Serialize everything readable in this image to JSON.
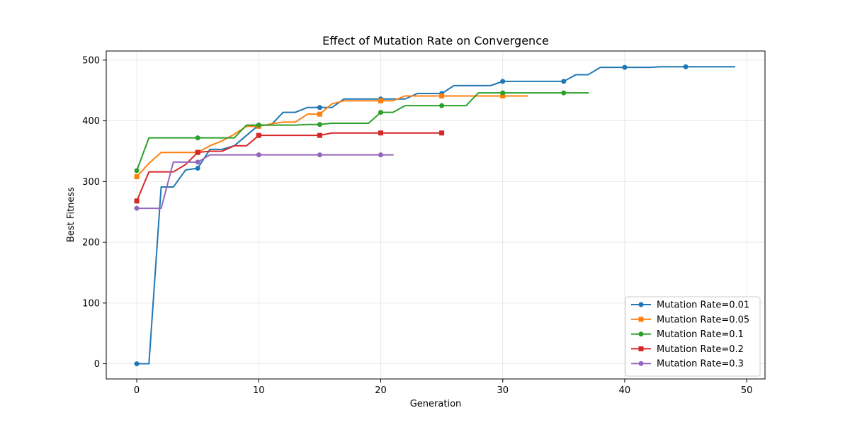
{
  "chart_data": {
    "type": "line",
    "title": "Effect of Mutation Rate on Convergence",
    "xlabel": "Generation",
    "ylabel": "Best Fitness",
    "xlim": [
      -2.5,
      51.5
    ],
    "ylim": [
      -25,
      515
    ],
    "xticks": [
      0,
      10,
      20,
      30,
      40,
      50
    ],
    "yticks": [
      0,
      100,
      200,
      300,
      400,
      500
    ],
    "grid": true,
    "legend_position": "lower-right",
    "series": [
      {
        "name": "Mutation Rate=0.01",
        "color": "#1f77b4",
        "marker": "circle",
        "marker_every": 5,
        "x": [
          0,
          1,
          2,
          3,
          4,
          5,
          6,
          7,
          8,
          9,
          10,
          11,
          12,
          13,
          14,
          15,
          16,
          17,
          18,
          19,
          20,
          21,
          22,
          23,
          24,
          25,
          26,
          27,
          28,
          29,
          30,
          31,
          32,
          33,
          34,
          35,
          36,
          37,
          38,
          39,
          40,
          41,
          42,
          43,
          44,
          45,
          46,
          47,
          48,
          49
        ],
        "y": [
          0,
          0,
          291,
          291,
          319,
          322,
          353,
          353,
          359,
          376,
          393,
          393,
          414,
          414,
          422,
          422,
          422,
          436,
          436,
          436,
          436,
          436,
          436,
          445,
          445,
          445,
          458,
          458,
          458,
          458,
          465,
          465,
          465,
          465,
          465,
          465,
          476,
          476,
          488,
          488,
          488,
          488,
          488,
          489,
          489,
          489,
          489,
          489,
          489,
          489
        ]
      },
      {
        "name": "Mutation Rate=0.05",
        "color": "#ff7f0e",
        "marker": "square",
        "marker_every": 5,
        "x": [
          0,
          1,
          2,
          3,
          4,
          5,
          6,
          7,
          8,
          9,
          10,
          11,
          12,
          13,
          14,
          15,
          16,
          17,
          18,
          19,
          20,
          21,
          22,
          23,
          24,
          25,
          26,
          27,
          28,
          29,
          30,
          31,
          32
        ],
        "y": [
          308,
          330,
          348,
          348,
          348,
          348,
          359,
          367,
          378,
          391,
          391,
          395,
          398,
          398,
          411,
          411,
          428,
          433,
          433,
          433,
          433,
          433,
          441,
          441,
          441,
          441,
          441,
          441,
          441,
          441,
          441,
          441,
          441
        ]
      },
      {
        "name": "Mutation Rate=0.1",
        "color": "#2ca02c",
        "marker": "circle",
        "marker_every": 5,
        "x": [
          0,
          1,
          2,
          3,
          4,
          5,
          6,
          7,
          8,
          9,
          10,
          11,
          12,
          13,
          14,
          15,
          16,
          17,
          18,
          19,
          20,
          21,
          22,
          23,
          24,
          25,
          26,
          27,
          28,
          29,
          30,
          31,
          32,
          33,
          34,
          35,
          36,
          37
        ],
        "y": [
          318,
          372,
          372,
          372,
          372,
          372,
          372,
          372,
          372,
          393,
          393,
          393,
          393,
          393,
          394,
          394,
          396,
          396,
          396,
          396,
          414,
          414,
          425,
          425,
          425,
          425,
          425,
          425,
          446,
          446,
          446,
          446,
          446,
          446,
          446,
          446,
          446,
          446
        ]
      },
      {
        "name": "Mutation Rate=0.2",
        "color": "#d62728",
        "marker": "square",
        "marker_every": 5,
        "x": [
          0,
          1,
          2,
          3,
          4,
          5,
          6,
          7,
          8,
          9,
          10,
          11,
          12,
          13,
          14,
          15,
          16,
          17,
          18,
          19,
          20,
          21,
          22,
          23,
          24,
          25
        ],
        "y": [
          268,
          316,
          316,
          316,
          328,
          348,
          350,
          350,
          359,
          359,
          376,
          376,
          376,
          376,
          376,
          376,
          380,
          380,
          380,
          380,
          380,
          380,
          380,
          380,
          380,
          380
        ]
      },
      {
        "name": "Mutation Rate=0.3",
        "color": "#9467bd",
        "marker": "circle",
        "marker_every": 5,
        "x": [
          0,
          1,
          2,
          3,
          4,
          5,
          6,
          7,
          8,
          9,
          10,
          11,
          12,
          13,
          14,
          15,
          16,
          17,
          18,
          19,
          20,
          21
        ],
        "y": [
          256,
          256,
          256,
          332,
          332,
          332,
          344,
          344,
          344,
          344,
          344,
          344,
          344,
          344,
          344,
          344,
          344,
          344,
          344,
          344,
          344,
          344
        ]
      }
    ]
  }
}
